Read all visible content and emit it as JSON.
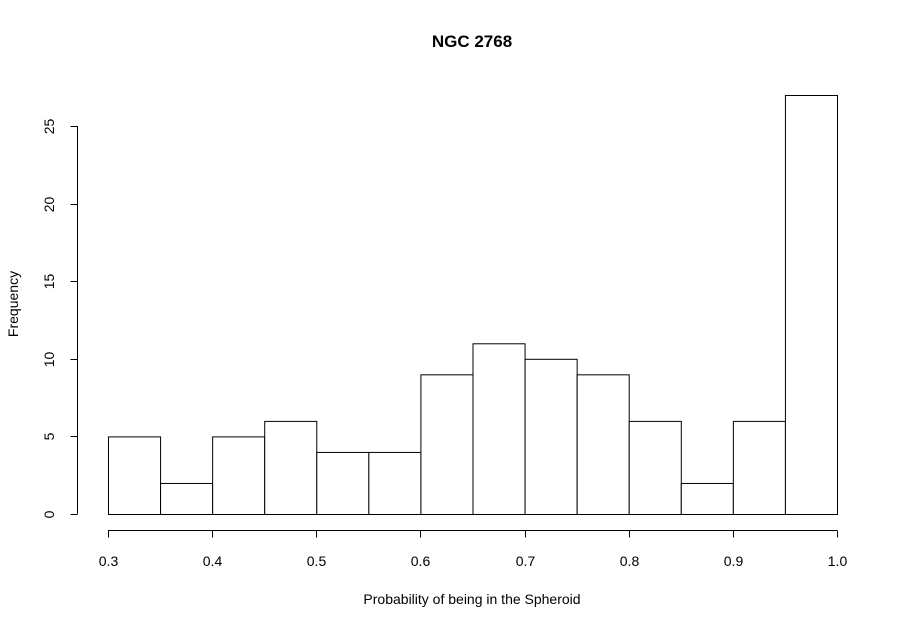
{
  "chart_data": {
    "type": "bar",
    "title": "NGC 2768",
    "xlabel": "Probability of being in the Spheroid",
    "ylabel": "Frequency",
    "bins": [
      {
        "from": 0.3,
        "to": 0.35,
        "count": 5
      },
      {
        "from": 0.35,
        "to": 0.4,
        "count": 2
      },
      {
        "from": 0.4,
        "to": 0.45,
        "count": 5
      },
      {
        "from": 0.45,
        "to": 0.5,
        "count": 6
      },
      {
        "from": 0.5,
        "to": 0.55,
        "count": 4
      },
      {
        "from": 0.55,
        "to": 0.6,
        "count": 4
      },
      {
        "from": 0.6,
        "to": 0.65,
        "count": 9
      },
      {
        "from": 0.65,
        "to": 0.7,
        "count": 11
      },
      {
        "from": 0.7,
        "to": 0.75,
        "count": 10
      },
      {
        "from": 0.75,
        "to": 0.8,
        "count": 9
      },
      {
        "from": 0.8,
        "to": 0.85,
        "count": 6
      },
      {
        "from": 0.85,
        "to": 0.9,
        "count": 2
      },
      {
        "from": 0.9,
        "to": 0.95,
        "count": 6
      },
      {
        "from": 0.95,
        "to": 1.0,
        "count": 27
      }
    ],
    "xlim": [
      0.3,
      1.0
    ],
    "ylim": [
      0,
      27
    ],
    "x_ticks": [
      "0.3",
      "0.4",
      "0.5",
      "0.6",
      "0.7",
      "0.8",
      "0.9",
      "1.0"
    ],
    "y_ticks": [
      "0",
      "5",
      "10",
      "15",
      "20",
      "25"
    ],
    "grid": false,
    "legend": "none",
    "colors": {
      "bar_fill": "#ffffff",
      "bar_stroke": "#000000"
    }
  }
}
